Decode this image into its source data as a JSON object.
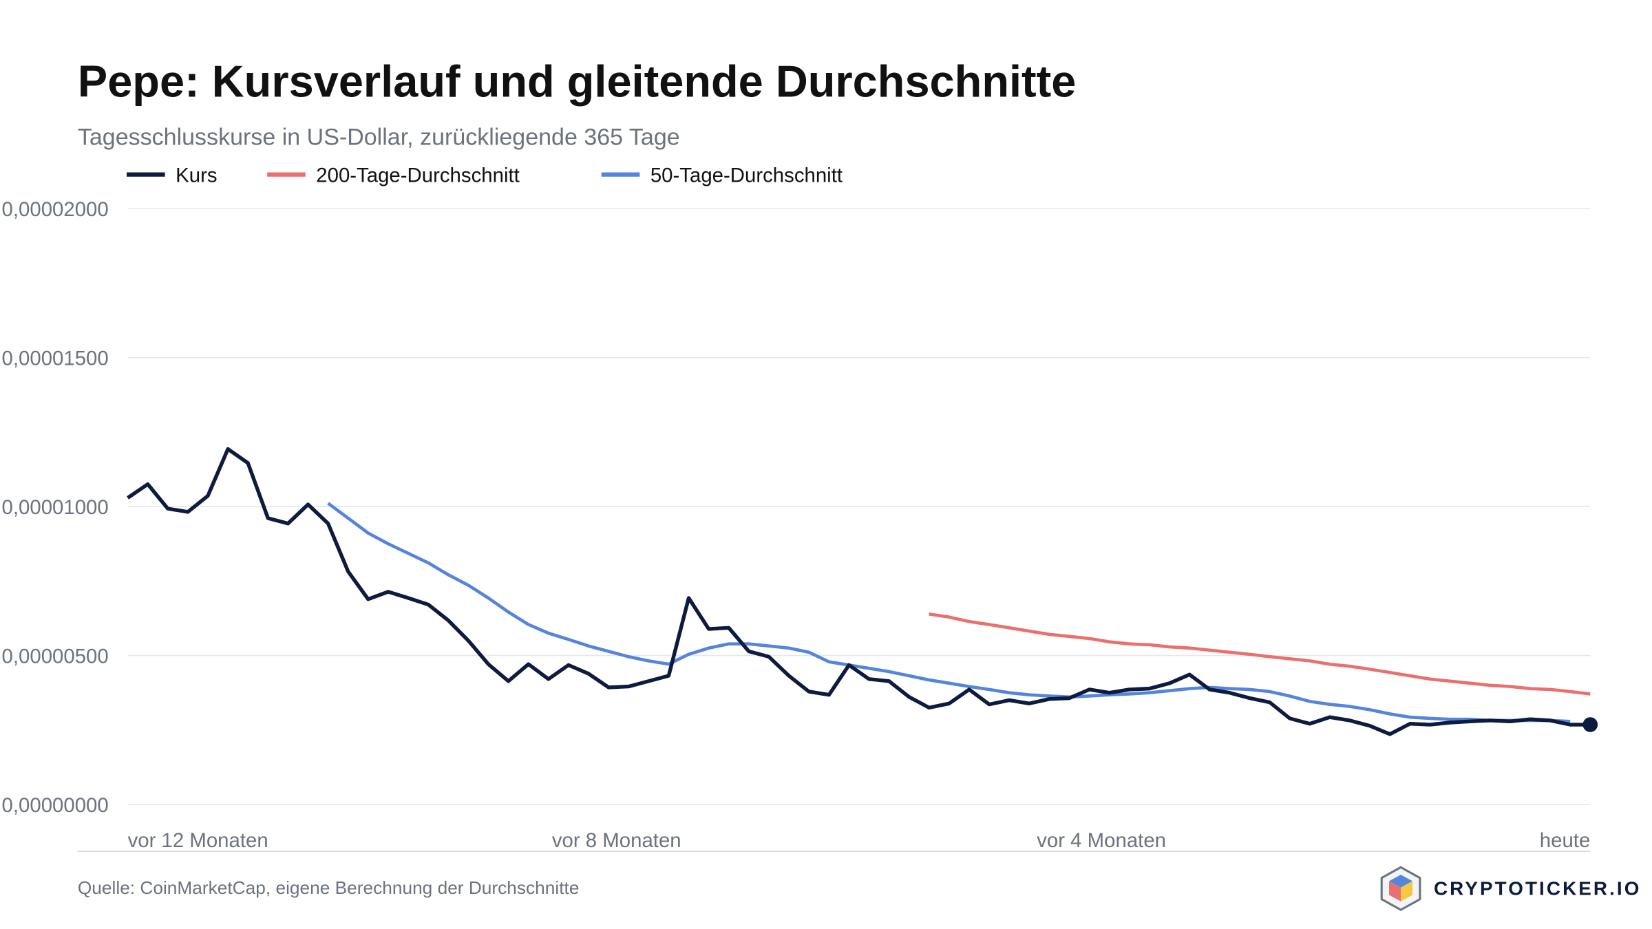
{
  "chart_data": {
    "type": "line",
    "title": "Pepe: Kursverlauf und gleitende Durchschnitte",
    "subtitle": "Tagesschlusskurse in US-Dollar, zurückliegende 365 Tage",
    "source": "Quelle: CoinMarketCap, eigene Berechnung der Durchschnitte",
    "brand": "CRYPTOTICKER.IO",
    "x": [
      -365,
      -360,
      -355,
      -350,
      -345,
      -340,
      -335,
      -330,
      -325,
      -320,
      -315,
      -310,
      -305,
      -300,
      -295,
      -290,
      -285,
      -280,
      -275,
      -270,
      -265,
      -260,
      -255,
      -250,
      -245,
      -240,
      -235,
      -230,
      -225,
      -220,
      -215,
      -210,
      -205,
      -200,
      -195,
      -190,
      -185,
      -180,
      -175,
      -170,
      -165,
      -160,
      -155,
      -150,
      -145,
      -140,
      -135,
      -130,
      -125,
      -120,
      -115,
      -110,
      -105,
      -100,
      -95,
      -90,
      -85,
      -80,
      -75,
      -70,
      -65,
      -60,
      -55,
      -50,
      -45,
      -40,
      -35,
      -30,
      -25,
      -20,
      -15,
      -10,
      -5,
      0
    ],
    "xlim": [
      -365,
      0
    ],
    "xticks": [
      {
        "value": -365,
        "label": "vor 12 Monaten"
      },
      {
        "value": -243,
        "label": "vor 8 Monaten"
      },
      {
        "value": -122,
        "label": "vor 4 Monaten"
      },
      {
        "value": 0,
        "label": "heute"
      }
    ],
    "ylim": [
      0,
      2e-05
    ],
    "yticks": [
      {
        "value": 0,
        "label": "0,00000000"
      },
      {
        "value": 5e-06,
        "label": "0,00000500"
      },
      {
        "value": 1e-05,
        "label": "0,00001000"
      },
      {
        "value": 1.5e-05,
        "label": "0,00001500"
      },
      {
        "value": 2e-05,
        "label": "0,00002000"
      }
    ],
    "grid": true,
    "series": [
      {
        "name": "Kurs",
        "color": "#0d1b3e",
        "marker_last": true,
        "values": [
          1.029e-05,
          1.075e-05,
          9.93e-06,
          9.82e-06,
          1.036e-05,
          1.193e-05,
          1.146e-05,
          9.61e-06,
          9.43e-06,
          1.007e-05,
          9.43e-06,
          7.82e-06,
          6.89e-06,
          7.14e-06,
          6.93e-06,
          6.71e-06,
          6.18e-06,
          5.5e-06,
          4.71e-06,
          4.14e-06,
          4.71e-06,
          4.21e-06,
          4.68e-06,
          4.39e-06,
          3.93e-06,
          3.96e-06,
          4.14e-06,
          4.32e-06,
          6.93e-06,
          5.89e-06,
          5.93e-06,
          5.14e-06,
          4.96e-06,
          4.32e-06,
          3.79e-06,
          3.68e-06,
          4.68e-06,
          4.21e-06,
          4.14e-06,
          3.61e-06,
          3.25e-06,
          3.39e-06,
          3.86e-06,
          3.36e-06,
          3.5e-06,
          3.39e-06,
          3.54e-06,
          3.57e-06,
          3.86e-06,
          3.75e-06,
          3.86e-06,
          3.89e-06,
          4.07e-06,
          4.36e-06,
          3.86e-06,
          3.75e-06,
          3.57e-06,
          3.43e-06,
          2.89e-06,
          2.71e-06,
          2.93e-06,
          2.82e-06,
          2.64e-06,
          2.36e-06,
          2.71e-06,
          2.68e-06,
          2.75e-06,
          2.79e-06,
          2.82e-06,
          2.79e-06,
          2.86e-06,
          2.82e-06,
          2.68e-06,
          2.68e-06
        ]
      },
      {
        "name": "200-Tage-Durchschnitt",
        "color": "#e8716f",
        "values": [
          null,
          null,
          null,
          null,
          null,
          null,
          null,
          null,
          null,
          null,
          null,
          null,
          null,
          null,
          null,
          null,
          null,
          null,
          null,
          null,
          null,
          null,
          null,
          null,
          null,
          null,
          null,
          null,
          null,
          null,
          null,
          null,
          null,
          null,
          null,
          null,
          null,
          null,
          null,
          null,
          6.39e-06,
          6.29e-06,
          6.14e-06,
          6.04e-06,
          5.93e-06,
          5.82e-06,
          5.71e-06,
          5.64e-06,
          5.57e-06,
          5.46e-06,
          5.39e-06,
          5.36e-06,
          5.29e-06,
          5.25e-06,
          5.18e-06,
          5.11e-06,
          5.04e-06,
          4.96e-06,
          4.89e-06,
          4.82e-06,
          4.71e-06,
          4.64e-06,
          4.54e-06,
          4.43e-06,
          4.32e-06,
          4.21e-06,
          4.14e-06,
          4.07e-06,
          4e-06,
          3.96e-06,
          3.89e-06,
          3.86e-06,
          3.79e-06,
          3.71e-06
        ]
      },
      {
        "name": "50-Tage-Durchschnitt",
        "color": "#5584dc",
        "values": [
          null,
          null,
          null,
          null,
          null,
          null,
          null,
          null,
          null,
          null,
          1.011e-05,
          9.61e-06,
          9.11e-06,
          8.75e-06,
          8.43e-06,
          8.11e-06,
          7.71e-06,
          7.36e-06,
          6.93e-06,
          6.46e-06,
          6.04e-06,
          5.75e-06,
          5.54e-06,
          5.32e-06,
          5.14e-06,
          4.96e-06,
          4.82e-06,
          4.71e-06,
          5.04e-06,
          5.25e-06,
          5.39e-06,
          5.39e-06,
          5.32e-06,
          5.25e-06,
          5.11e-06,
          4.79e-06,
          4.68e-06,
          4.57e-06,
          4.46e-06,
          4.32e-06,
          4.18e-06,
          4.07e-06,
          3.96e-06,
          3.86e-06,
          3.75e-06,
          3.68e-06,
          3.64e-06,
          3.61e-06,
          3.64e-06,
          3.68e-06,
          3.71e-06,
          3.75e-06,
          3.82e-06,
          3.89e-06,
          3.93e-06,
          3.89e-06,
          3.86e-06,
          3.79e-06,
          3.64e-06,
          3.46e-06,
          3.36e-06,
          3.29e-06,
          3.18e-06,
          3.04e-06,
          2.93e-06,
          2.89e-06,
          2.86e-06,
          2.86e-06,
          2.82e-06,
          2.82e-06,
          2.82e-06,
          2.82e-06,
          2.79e-06,
          null
        ]
      }
    ]
  }
}
